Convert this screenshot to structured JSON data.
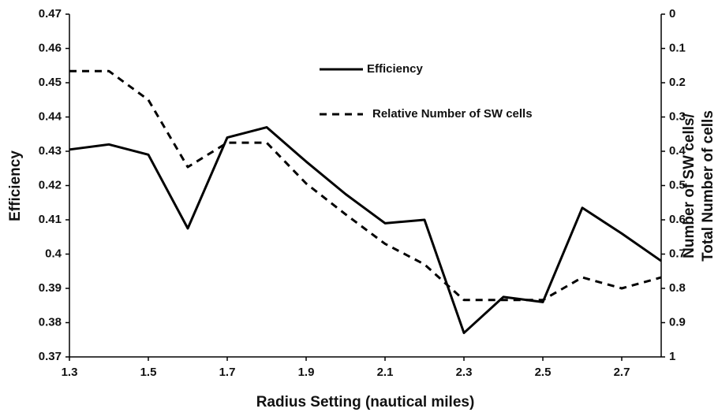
{
  "chart_data": {
    "type": "line",
    "xlabel": "Radius Setting (nautical miles)",
    "ylabel": "Efficiency",
    "y2label": [
      "Number of SW cells/",
      "Total Number of cells"
    ],
    "x": [
      1.3,
      1.4,
      1.5,
      1.6,
      1.7,
      1.8,
      1.9,
      2.0,
      2.1,
      2.2,
      2.3,
      2.4,
      2.5,
      2.6,
      2.7,
      2.8
    ],
    "series": [
      {
        "name": "Efficiency",
        "color": "#000000",
        "line_style": "solid",
        "values": [
          0.4305,
          0.432,
          0.429,
          0.4075,
          0.434,
          0.437,
          0.427,
          0.4175,
          0.409,
          0.41,
          0.377,
          0.3875,
          0.386,
          0.4135,
          0.406,
          0.398
        ]
      },
      {
        "name": "Relative Number of SW cells",
        "color": "#000000",
        "line_style": "dashed",
        "axis": "y2",
        "values": [
          0.166,
          0.166,
          0.25,
          0.446,
          0.375,
          0.375,
          0.494,
          0.584,
          0.67,
          0.73,
          0.834,
          0.834,
          0.834,
          0.768,
          0.8,
          0.768
        ]
      }
    ],
    "xlim": [
      1.3,
      2.8
    ],
    "xticks": [
      1.3,
      1.5,
      1.7,
      1.9,
      2.1,
      2.3,
      2.5,
      2.7
    ],
    "ylim": [
      0.37,
      0.47
    ],
    "yticks": [
      0.37,
      0.38,
      0.39,
      0.4,
      0.41,
      0.42,
      0.43,
      0.44,
      0.45,
      0.46,
      0.47
    ],
    "y2lim": [
      1,
      0
    ],
    "y2ticks": [
      0,
      0.1,
      0.2,
      0.3,
      0.4,
      0.5,
      0.6,
      0.7,
      0.8,
      0.9,
      1
    ],
    "grid": false
  }
}
